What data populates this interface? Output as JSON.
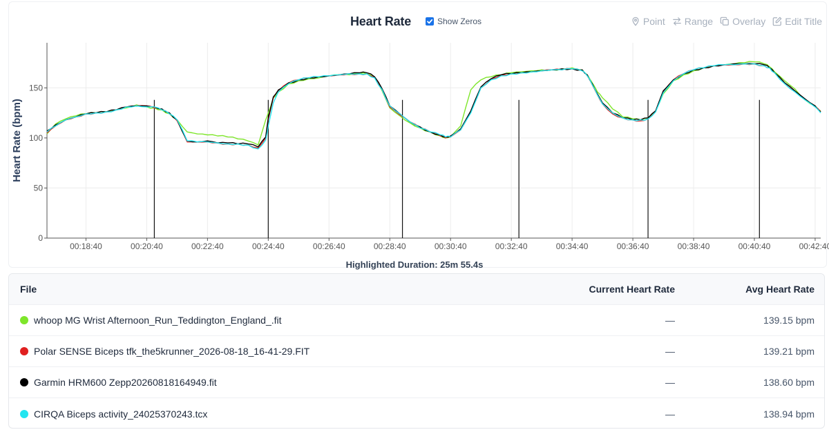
{
  "header": {
    "title": "Heart Rate",
    "show_zeros_label": "Show Zeros",
    "show_zeros_checked": true,
    "tools": [
      {
        "label": "Point",
        "icon": "map-pin-icon"
      },
      {
        "label": "Range",
        "icon": "arrows-exchange-icon"
      },
      {
        "label": "Overlay",
        "icon": "copy-icon"
      },
      {
        "label": "Edit Title",
        "icon": "edit-icon"
      }
    ]
  },
  "highlighted_duration": "Highlighted Duration: 25m 55.4s",
  "chart_data": {
    "type": "line",
    "ylabel": "Heart Rate (bpm)",
    "xlabel": "",
    "x_unit": "seconds since 00:00:00",
    "xlim": [
      1043,
      2571
    ],
    "ylim": [
      0,
      195
    ],
    "yticks": [
      0,
      50,
      100,
      150
    ],
    "xticks": [
      "00:18:40",
      "00:20:40",
      "00:22:40",
      "00:24:40",
      "00:26:40",
      "00:28:40",
      "00:30:40",
      "00:32:40",
      "00:34:40",
      "00:36:40",
      "00:38:40",
      "00:40:40",
      "00:42:40"
    ],
    "xtick_seconds": [
      1120,
      1240,
      1360,
      1480,
      1600,
      1720,
      1840,
      1960,
      2080,
      2200,
      2320,
      2440,
      2560
    ],
    "grid": true,
    "x": [
      1043,
      1060,
      1080,
      1100,
      1120,
      1140,
      1160,
      1180,
      1200,
      1220,
      1240,
      1255,
      1270,
      1285,
      1300,
      1320,
      1340,
      1360,
      1380,
      1400,
      1420,
      1440,
      1460,
      1475,
      1480,
      1490,
      1500,
      1520,
      1540,
      1560,
      1580,
      1600,
      1620,
      1640,
      1660,
      1675,
      1690,
      1705,
      1720,
      1740,
      1760,
      1780,
      1800,
      1820,
      1830,
      1840,
      1860,
      1880,
      1900,
      1920,
      1940,
      1960,
      1980,
      2000,
      2020,
      2040,
      2060,
      2080,
      2100,
      2110,
      2120,
      2130,
      2140,
      2160,
      2180,
      2200,
      2215,
      2230,
      2245,
      2260,
      2280,
      2300,
      2320,
      2340,
      2360,
      2380,
      2400,
      2420,
      2440,
      2460,
      2470,
      2480,
      2500,
      2520,
      2540,
      2560,
      2571
    ],
    "series": [
      {
        "name": "whoop MG Wrist Afternoon_Run_Teddington_England_.fit",
        "color": "#7ee62a",
        "values": [
          104,
          114,
          119,
          122,
          124,
          125,
          126,
          128,
          130,
          133,
          131,
          130,
          128,
          124,
          118,
          106,
          104,
          103,
          102,
          101,
          99,
          97,
          93,
          118,
          125,
          140,
          146,
          154,
          157,
          159,
          160,
          162,
          163,
          163,
          164,
          164,
          160,
          147,
          130,
          122,
          115,
          110,
          106,
          102,
          100,
          101,
          112,
          148,
          158,
          161,
          163,
          165,
          166,
          167,
          168,
          168,
          169,
          170,
          168,
          163,
          155,
          146,
          140,
          129,
          121,
          119,
          118,
          120,
          127,
          144,
          157,
          163,
          167,
          170,
          172,
          173,
          174,
          175,
          176,
          174,
          171,
          166,
          157,
          149,
          138,
          132,
          127
        ]
      },
      {
        "name": "Polar SENSE Biceps tfk_the5krunner_2026-08-18_16-41-29.FIT",
        "color": "#e02020",
        "values": [
          105,
          112,
          118,
          121,
          124,
          125,
          126,
          128,
          131,
          132,
          132,
          130,
          128,
          124,
          117,
          96,
          96,
          96,
          95,
          94,
          94,
          93,
          90,
          100,
          118,
          140,
          147,
          155,
          158,
          160,
          161,
          162,
          163,
          164,
          164,
          164,
          161,
          148,
          131,
          123,
          116,
          110,
          106,
          102,
          100,
          101,
          108,
          126,
          150,
          159,
          163,
          164,
          165,
          166,
          167,
          168,
          168,
          169,
          167,
          162,
          153,
          143,
          134,
          124,
          120,
          118,
          117,
          119,
          126,
          146,
          158,
          164,
          168,
          170,
          172,
          173,
          173,
          174,
          174,
          172,
          170,
          165,
          154,
          146,
          138,
          131,
          126
        ]
      },
      {
        "name": "Garmin HRM600 Zepp20260818164949.fit",
        "color": "#000000",
        "values": [
          107,
          113,
          118,
          121,
          124,
          125,
          126,
          128,
          131,
          132,
          132,
          131,
          129,
          125,
          118,
          97,
          96,
          97,
          95,
          95,
          94,
          94,
          91,
          101,
          120,
          141,
          148,
          155,
          158,
          160,
          161,
          162,
          163,
          164,
          165,
          165,
          161,
          149,
          132,
          124,
          116,
          111,
          106,
          103,
          101,
          102,
          109,
          127,
          151,
          159,
          163,
          164,
          165,
          166,
          167,
          168,
          169,
          169,
          168,
          163,
          154,
          144,
          135,
          125,
          120,
          118,
          118,
          120,
          127,
          147,
          158,
          164,
          168,
          170,
          172,
          173,
          174,
          174,
          174,
          173,
          170,
          165,
          155,
          147,
          139,
          132,
          126
        ]
      },
      {
        "name": "CIRQA Biceps activity_24025370243.tcx",
        "color": "#22e5f0",
        "values": [
          106,
          112,
          118,
          121,
          124,
          125,
          126,
          128,
          131,
          132,
          131,
          131,
          128,
          124,
          118,
          97,
          96,
          96,
          95,
          94,
          94,
          93,
          89,
          98,
          112,
          135,
          146,
          154,
          158,
          160,
          161,
          162,
          163,
          164,
          164,
          164,
          160,
          148,
          132,
          124,
          116,
          110,
          106,
          103,
          101,
          101,
          108,
          125,
          150,
          158,
          162,
          164,
          165,
          166,
          167,
          168,
          168,
          169,
          167,
          162,
          153,
          143,
          134,
          125,
          120,
          118,
          118,
          119,
          126,
          145,
          157,
          164,
          168,
          170,
          172,
          173,
          173,
          174,
          174,
          172,
          170,
          165,
          154,
          146,
          138,
          131,
          125
        ]
      }
    ],
    "markers": [
      1255,
      1480,
      1745,
      1975,
      2230,
      2450
    ],
    "marker_labels": [
      "00:20:55",
      "00:24:40",
      "00:29:05",
      "00:32:55",
      "00:37:10",
      "00:40:50"
    ]
  },
  "table": {
    "headers": {
      "file": "File",
      "current": "Current Heart Rate",
      "avg": "Avg Heart Rate"
    },
    "rows": [
      {
        "file": "whoop MG Wrist Afternoon_Run_Teddington_England_.fit",
        "color": "#7ee62a",
        "current": "—",
        "avg": "139.15 bpm"
      },
      {
        "file": "Polar SENSE Biceps tfk_the5krunner_2026-08-18_16-41-29.FIT",
        "color": "#e02020",
        "current": "—",
        "avg": "139.21 bpm"
      },
      {
        "file": "Garmin HRM600 Zepp20260818164949.fit",
        "color": "#000000",
        "current": "—",
        "avg": "138.60 bpm"
      },
      {
        "file": "CIRQA Biceps activity_24025370243.tcx",
        "color": "#22e5f0",
        "current": "—",
        "avg": "138.94 bpm"
      }
    ]
  }
}
